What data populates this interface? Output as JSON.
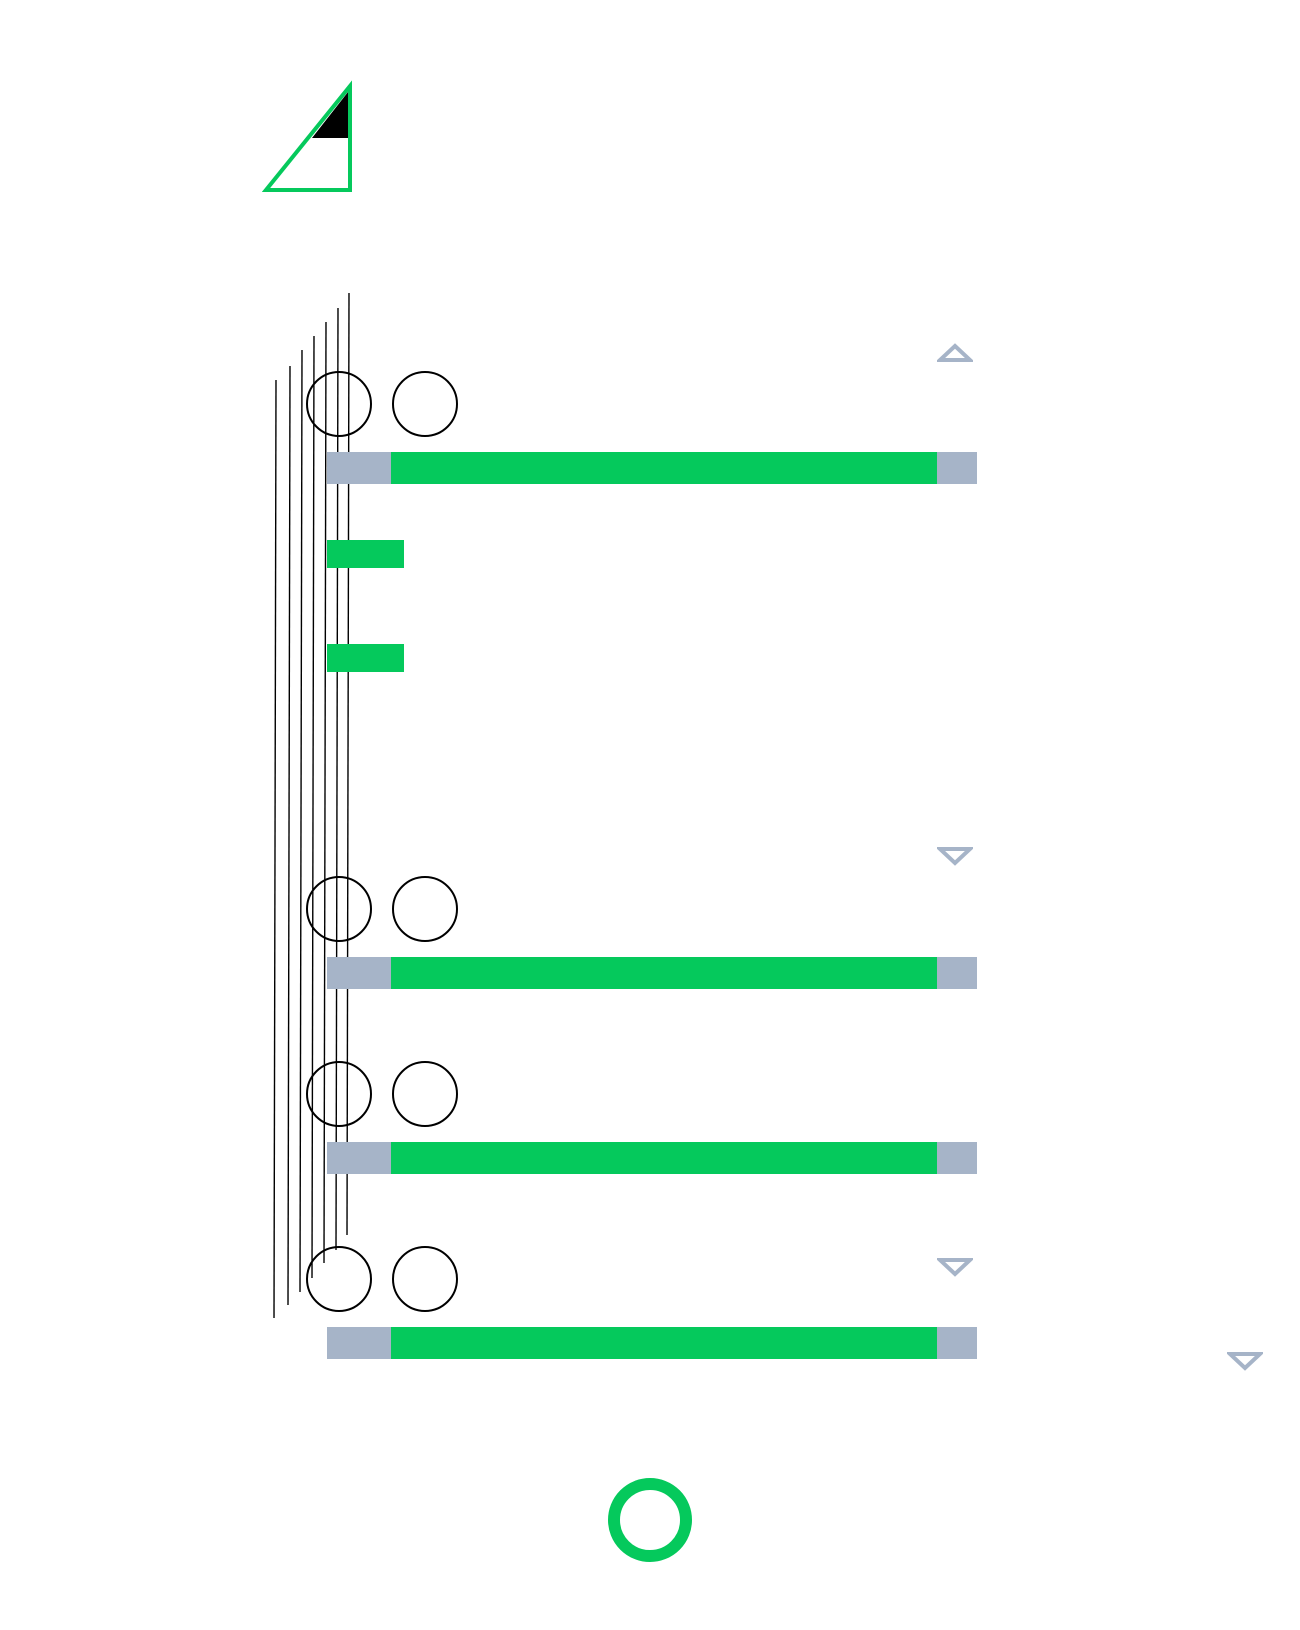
{
  "colors": {
    "accent": "#05c95c",
    "muted": "#a6b4c8",
    "ink": "#000000"
  },
  "logo": {
    "icon": "triangle-logo-icon"
  },
  "sections": [
    {
      "name": "row-1",
      "toggle_icon": "chevron-up-icon",
      "expanded": true,
      "progress_fill_fraction": 0.84
    },
    {
      "name": "row-2",
      "toggle_icon": "chevron-down-icon",
      "expanded": false,
      "progress_fill_fraction": 0.84
    },
    {
      "name": "row-3",
      "toggle_icon": "",
      "expanded": false,
      "progress_fill_fraction": 0.84
    },
    {
      "name": "row-4",
      "toggle_icon": "chevron-down-icon",
      "expanded": false,
      "progress_fill_fraction": 0.84
    }
  ],
  "sub_items": [
    "chip",
    "chip"
  ],
  "extra_toggle_icon": "chevron-down-icon",
  "loading_indicator": {
    "icon": "ring-spinner-icon"
  }
}
